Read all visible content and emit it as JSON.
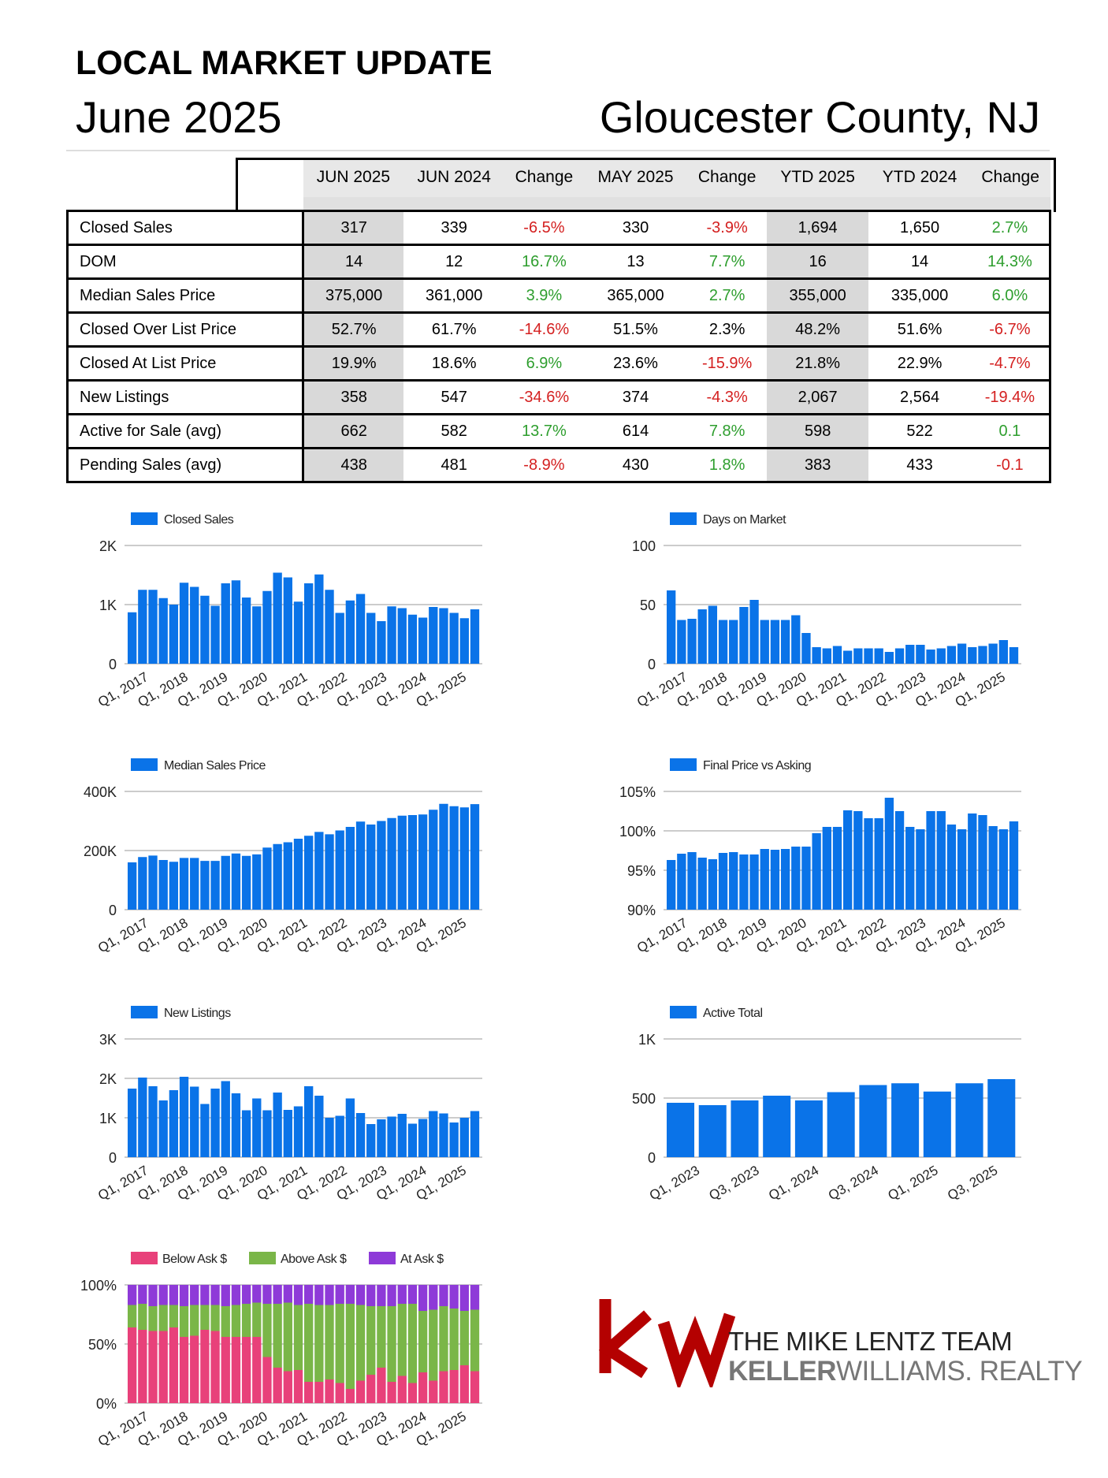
{
  "header": {
    "title": "LOCAL MARKET UPDATE",
    "month": "June 2025",
    "county": "Gloucester County, NJ"
  },
  "table": {
    "columns": [
      "JUN 2025",
      "JUN 2024",
      "Change",
      "MAY 2025",
      "Change",
      "YTD 2025",
      "YTD 2024",
      "Change"
    ],
    "rows": [
      {
        "label": "Closed Sales",
        "values": [
          "317",
          "339",
          "-6.5%",
          "330",
          "-3.9%",
          "1,694",
          "1,650",
          "2.7%"
        ]
      },
      {
        "label": "DOM",
        "values": [
          "14",
          "12",
          "16.7%",
          "13",
          "7.7%",
          "16",
          "14",
          "14.3%"
        ]
      },
      {
        "label": "Median Sales Price",
        "values": [
          "375,000",
          "361,000",
          "3.9%",
          "365,000",
          "2.7%",
          "355,000",
          "335,000",
          "6.0%"
        ]
      },
      {
        "label": "Closed Over List Price",
        "values": [
          "52.7%",
          "61.7%",
          "-14.6%",
          "51.5%",
          "2.3%",
          "48.2%",
          "51.6%",
          "-6.7%"
        ]
      },
      {
        "label": "Closed At List Price",
        "values": [
          "19.9%",
          "18.6%",
          "6.9%",
          "23.6%",
          "-15.9%",
          "21.8%",
          "22.9%",
          "-4.7%"
        ]
      },
      {
        "label": "New Listings",
        "values": [
          "358",
          "547",
          "-34.6%",
          "374",
          "-4.3%",
          "2,067",
          "2,564",
          "-19.4%"
        ]
      },
      {
        "label": "Active for Sale (avg)",
        "values": [
          "662",
          "582",
          "13.7%",
          "614",
          "7.8%",
          "598",
          "522",
          "0.1"
        ]
      },
      {
        "label": "Pending Sales (avg)",
        "values": [
          "438",
          "481",
          "-8.9%",
          "430",
          "1.8%",
          "383",
          "433",
          "-0.1"
        ]
      }
    ],
    "change_colors": {
      "Closed Sales": [
        "neg",
        "neg",
        "pos"
      ],
      "DOM": [
        "pos",
        "pos",
        "pos"
      ],
      "Median Sales Price": [
        "pos",
        "pos",
        "pos"
      ],
      "Closed Over List Price": [
        "neg",
        "none",
        "neg"
      ],
      "Closed At List Price": [
        "pos",
        "neg",
        "neg"
      ],
      "New Listings": [
        "neg",
        "neg",
        "neg"
      ],
      "Active for Sale (avg)": [
        "pos",
        "pos",
        "pos"
      ],
      "Pending Sales (avg)": [
        "neg",
        "pos",
        "neg"
      ]
    },
    "colors": {
      "positive": "#2e9e2e",
      "negative": "#d42020",
      "shade": "#d9d9d9"
    }
  },
  "chart_data": [
    {
      "id": "closed-sales",
      "type": "bar",
      "legend": "Closed Sales",
      "color": "#0a73e8",
      "ylim": [
        0,
        2000
      ],
      "yticks": [
        {
          "v": 0,
          "t": "0"
        },
        {
          "v": 1000,
          "t": "1K"
        },
        {
          "v": 2000,
          "t": "2K"
        }
      ],
      "xtick_labels": [
        "Q1, 2017",
        "Q1, 2018",
        "Q1, 2019",
        "Q1, 2020",
        "Q1, 2021",
        "Q1, 2022",
        "Q1, 2023",
        "Q1, 2024",
        "Q1, 2025"
      ],
      "values": [
        870,
        1250,
        1250,
        1110,
        1000,
        1370,
        1300,
        1150,
        980,
        1360,
        1410,
        1120,
        970,
        1230,
        1540,
        1460,
        1050,
        1360,
        1510,
        1250,
        860,
        1070,
        1180,
        860,
        720,
        970,
        940,
        830,
        780,
        960,
        940,
        860,
        770,
        920
      ]
    },
    {
      "id": "dom",
      "type": "bar",
      "legend": "Days on Market",
      "color": "#0a73e8",
      "ylim": [
        0,
        100
      ],
      "yticks": [
        {
          "v": 0,
          "t": "0"
        },
        {
          "v": 50,
          "t": "50"
        },
        {
          "v": 100,
          "t": "100"
        }
      ],
      "xtick_labels": [
        "Q1, 2017",
        "Q1, 2018",
        "Q1, 2019",
        "Q1, 2020",
        "Q1, 2021",
        "Q1, 2022",
        "Q1, 2023",
        "Q1, 2024",
        "Q1, 2025"
      ],
      "values": [
        62,
        37,
        38,
        46,
        49,
        37,
        37,
        48,
        54,
        37,
        37,
        37,
        41,
        26,
        14,
        13,
        15,
        11,
        13,
        13,
        13,
        10,
        13,
        16,
        16,
        12,
        13,
        15,
        17,
        14,
        15,
        17,
        20,
        14
      ]
    },
    {
      "id": "median-price",
      "type": "bar",
      "legend": "Median Sales Price",
      "color": "#0a73e8",
      "ylim": [
        0,
        400000
      ],
      "yticks": [
        {
          "v": 0,
          "t": "0"
        },
        {
          "v": 200000,
          "t": "200K"
        },
        {
          "v": 400000,
          "t": "400K"
        }
      ],
      "xtick_labels": [
        "Q1, 2017",
        "Q1, 2018",
        "Q1, 2019",
        "Q1, 2020",
        "Q1, 2021",
        "Q1, 2022",
        "Q1, 2023",
        "Q1, 2024",
        "Q1, 2025"
      ],
      "values": [
        160000,
        178000,
        183000,
        168000,
        162000,
        175000,
        175000,
        165000,
        165000,
        182000,
        190000,
        182000,
        187000,
        210000,
        222000,
        228000,
        240000,
        250000,
        263000,
        255000,
        268000,
        280000,
        298000,
        288000,
        300000,
        310000,
        318000,
        320000,
        322000,
        338000,
        358000,
        350000,
        346000,
        357000
      ]
    },
    {
      "id": "final-vs-asking",
      "type": "bar",
      "legend": "Final Price vs Asking",
      "color": "#0a73e8",
      "ylim": [
        90,
        105
      ],
      "yticks": [
        {
          "v": 90,
          "t": "90%"
        },
        {
          "v": 95,
          "t": "95%"
        },
        {
          "v": 100,
          "t": "100%"
        },
        {
          "v": 105,
          "t": "105%"
        }
      ],
      "xtick_labels": [
        "Q1, 2017",
        "Q1, 2018",
        "Q1, 2019",
        "Q1, 2020",
        "Q1, 2021",
        "Q1, 2022",
        "Q1, 2023",
        "Q1, 2024",
        "Q1, 2025"
      ],
      "values": [
        96.3,
        97.1,
        97.3,
        96.6,
        96.4,
        97.2,
        97.3,
        97.0,
        97.0,
        97.7,
        97.6,
        97.7,
        98.0,
        98.0,
        99.7,
        100.5,
        100.5,
        102.6,
        102.5,
        101.6,
        101.6,
        104.2,
        102.5,
        100.5,
        100.2,
        102.5,
        102.5,
        100.8,
        100.2,
        102.2,
        102.0,
        100.6,
        100.2,
        101.2
      ]
    },
    {
      "id": "new-listings",
      "type": "bar",
      "legend": "New Listings",
      "color": "#0a73e8",
      "ylim": [
        0,
        3000
      ],
      "yticks": [
        {
          "v": 0,
          "t": "0"
        },
        {
          "v": 1000,
          "t": "1K"
        },
        {
          "v": 2000,
          "t": "2K"
        },
        {
          "v": 3000,
          "t": "3K"
        }
      ],
      "xtick_labels": [
        "Q1, 2017",
        "Q1, 2018",
        "Q1, 2019",
        "Q1, 2020",
        "Q1, 2021",
        "Q1, 2022",
        "Q1, 2023",
        "Q1, 2024",
        "Q1, 2025"
      ],
      "values": [
        1740,
        2020,
        1800,
        1440,
        1700,
        2040,
        1790,
        1350,
        1740,
        1930,
        1620,
        1190,
        1490,
        1190,
        1640,
        1200,
        1290,
        1800,
        1560,
        1000,
        1050,
        1490,
        1120,
        840,
        960,
        1030,
        1100,
        850,
        970,
        1170,
        1110,
        880,
        1000,
        1170
      ]
    },
    {
      "id": "active-total",
      "type": "bar",
      "legend": "Active Total",
      "color": "#0a73e8",
      "ylim": [
        0,
        1000
      ],
      "yticks": [
        {
          "v": 0,
          "t": "0"
        },
        {
          "v": 500,
          "t": "500"
        },
        {
          "v": 1000,
          "t": "1K"
        }
      ],
      "xtick_labels": [
        "Q1, 2023",
        "Q3, 2023",
        "Q1, 2024",
        "Q3, 2024",
        "Q1, 2025",
        "Q3, 2025"
      ],
      "values": [
        460,
        440,
        480,
        520,
        480,
        550,
        610,
        625,
        555,
        625,
        660
      ]
    },
    {
      "id": "ask-breakdown",
      "type": "stacked-bar",
      "legend_items": [
        {
          "name": "Below Ask $",
          "color": "#e8417a"
        },
        {
          "name": "Above Ask $",
          "color": "#7ab648"
        },
        {
          "name": "At Ask $",
          "color": "#8e3ad8"
        }
      ],
      "ylim": [
        0,
        100
      ],
      "yticks": [
        {
          "v": 0,
          "t": "0%"
        },
        {
          "v": 50,
          "t": "50%"
        },
        {
          "v": 100,
          "t": "100%"
        }
      ],
      "xtick_labels": [
        "Q1, 2017",
        "Q1, 2018",
        "Q1, 2019",
        "Q1, 2020",
        "Q1, 2021",
        "Q1, 2022",
        "Q1, 2023",
        "Q1, 2024",
        "Q1, 2025"
      ],
      "series": [
        {
          "name": "Below Ask $",
          "values": [
            64,
            62,
            61,
            61,
            64,
            56,
            57,
            62,
            61,
            56,
            56,
            56,
            56,
            39,
            30,
            27,
            28,
            18,
            18,
            20,
            17,
            12,
            19,
            24,
            30,
            18,
            23,
            17,
            26,
            19,
            27,
            28,
            32,
            27
          ]
        },
        {
          "name": "Above Ask $",
          "values": [
            19,
            22,
            21,
            22,
            19,
            26,
            26,
            21,
            22,
            26,
            27,
            28,
            29,
            45,
            54,
            58,
            55,
            66,
            65,
            63,
            67,
            72,
            64,
            58,
            52,
            64,
            61,
            67,
            52,
            60,
            55,
            52,
            46,
            52
          ]
        },
        {
          "name": "At Ask $",
          "values": [
            17,
            16,
            18,
            17,
            17,
            18,
            17,
            17,
            17,
            18,
            17,
            16,
            15,
            16,
            16,
            15,
            17,
            16,
            17,
            17,
            16,
            16,
            17,
            18,
            18,
            18,
            16,
            16,
            22,
            21,
            18,
            20,
            22,
            21
          ]
        }
      ]
    }
  ],
  "logo": {
    "mark": "kw",
    "team": "THE MIKE LENTZ TEAM",
    "brand_bold": "KELLER",
    "brand_regular": "WILLIAMS",
    "brand_suffix": ". REALTY",
    "mark_color": "#b40101"
  }
}
